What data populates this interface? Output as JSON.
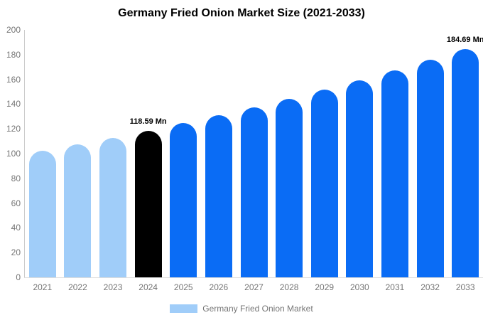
{
  "chart_data": {
    "type": "bar",
    "title": "Germany Fried Onion Market Size (2021-2033)",
    "categories": [
      "2021",
      "2022",
      "2023",
      "2024",
      "2025",
      "2026",
      "2027",
      "2028",
      "2029",
      "2030",
      "2031",
      "2032",
      "2033"
    ],
    "values": [
      102.3,
      107.5,
      112.9,
      118.59,
      124.6,
      130.9,
      137.4,
      144.4,
      151.7,
      159.3,
      167.4,
      175.8,
      184.69
    ],
    "unit": "Mn",
    "xlabel": "",
    "ylabel": "",
    "ylim": [
      0,
      200
    ],
    "yticks": [
      0,
      20,
      40,
      60,
      80,
      100,
      120,
      140,
      160,
      180,
      200
    ],
    "grid": false,
    "bar_colors": [
      "#a0cdf9",
      "#a0cdf9",
      "#a0cdf9",
      "#000000",
      "#0a6cf5",
      "#0a6cf5",
      "#0a6cf5",
      "#0a6cf5",
      "#0a6cf5",
      "#0a6cf5",
      "#0a6cf5",
      "#0a6cf5",
      "#0a6cf5"
    ],
    "data_labels": {
      "2024": "118.59 Mn",
      "2033": "184.69 Mn"
    },
    "legend_position": "bottom",
    "legend": [
      {
        "label": "Germany Fried Onion Market",
        "color": "#a0cdf9"
      }
    ]
  },
  "colors": {
    "historical_bar": "#a0cdf9",
    "base_year_bar": "#000000",
    "forecast_bar": "#0a6cf5",
    "axis_line": "#cccccc",
    "tick_text": "#757575"
  }
}
